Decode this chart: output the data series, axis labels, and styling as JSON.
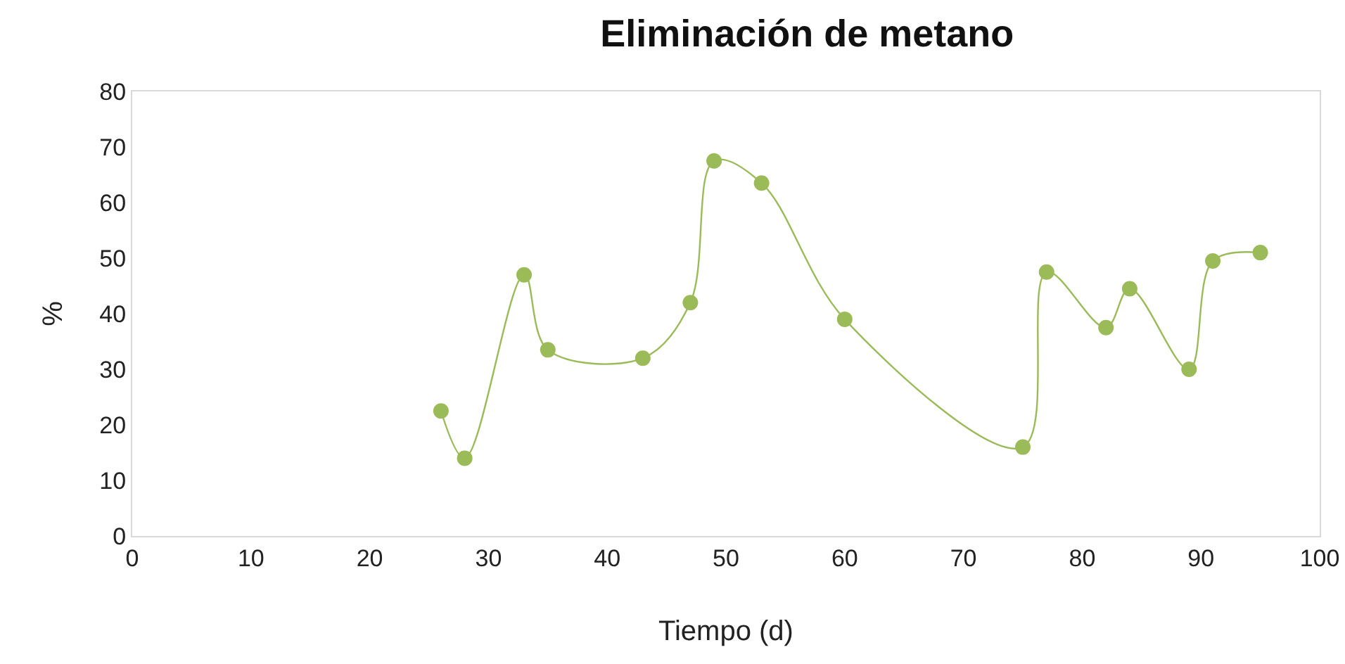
{
  "chart_data": {
    "type": "line",
    "title": "Eliminación de metano",
    "xlabel": "Tiempo (d)",
    "ylabel": "%",
    "x": [
      26,
      28,
      33,
      35,
      43,
      47,
      49,
      53,
      60,
      75,
      77,
      82,
      84,
      89,
      91,
      95
    ],
    "series": [
      {
        "color": "#9bbb59",
        "values": [
          22.5,
          14,
          47,
          33.5,
          32,
          42,
          67.5,
          63.5,
          39,
          16,
          47.5,
          37.5,
          44.5,
          30,
          49.5,
          51
        ]
      }
    ],
    "xlim": [
      0,
      100
    ],
    "xticks": [
      0,
      10,
      20,
      30,
      40,
      50,
      60,
      70,
      80,
      90,
      100
    ],
    "ylim": [
      0,
      80
    ],
    "yticks": [
      0,
      10,
      20,
      30,
      40,
      50,
      60,
      70,
      80
    ],
    "grid": false,
    "marker": "circle",
    "line_style": "solid"
  }
}
